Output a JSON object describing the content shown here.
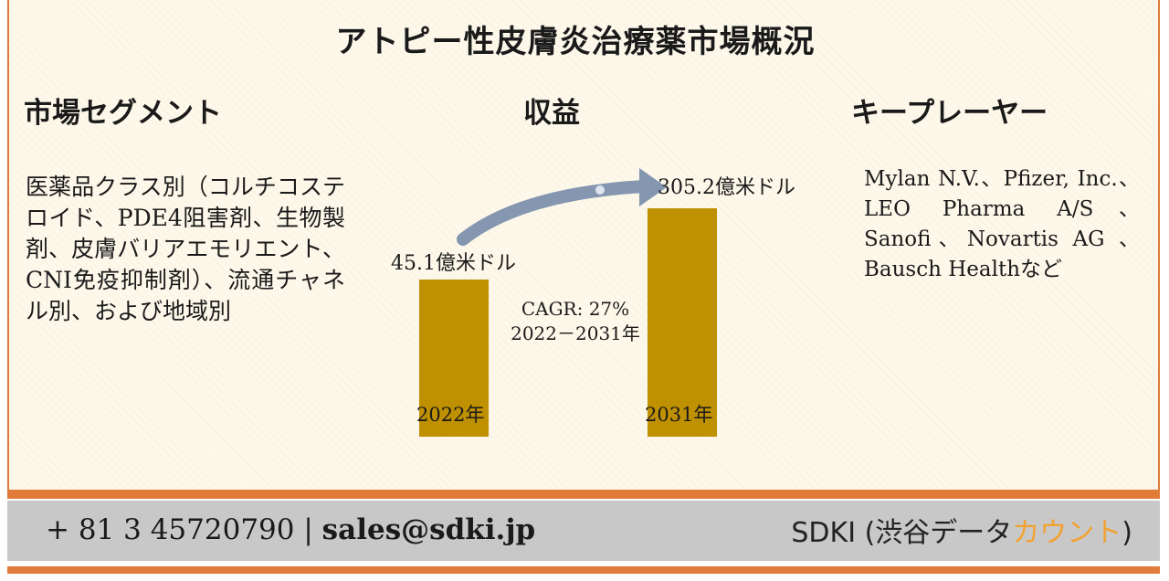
{
  "title": "アトピー性皮膚炎治療薬市場概況",
  "segments": {
    "heading": "市場セグメント",
    "text": "医薬品クラス別（コルチコステロイド、PDE4阻害剤、生物製剤、皮膚バリアエモリエント、CNI免疫抑制剤）、流通チャネル別、および地域別"
  },
  "revenue": {
    "heading": "収益"
  },
  "players": {
    "heading": "キープレーヤー",
    "text": "Mylan N.V.、Pfizer, Inc.、LEO Pharma A/S、Sanofi、Novartis AG 、 Bausch Healthなど"
  },
  "chart_data": {
    "type": "bar",
    "categories": [
      "2022年",
      "2031年"
    ],
    "values": [
      45.1,
      305.2
    ],
    "value_labels": [
      "45.1億米ドル",
      "305.2億米ドル"
    ],
    "unit": "億米ドル",
    "annotation": {
      "line1": "CAGR: 27%",
      "line2": "2022－2031年"
    },
    "bar_color": "#bf9000",
    "arrow_color": "#8496b0"
  },
  "footer": {
    "phone": "+ 81 3 45720790",
    "separator": "|",
    "email": "sales@sdki.jp",
    "brand_main": "SDKI (渋谷データ",
    "brand_accent": "カウント",
    "brand_close": ")"
  }
}
